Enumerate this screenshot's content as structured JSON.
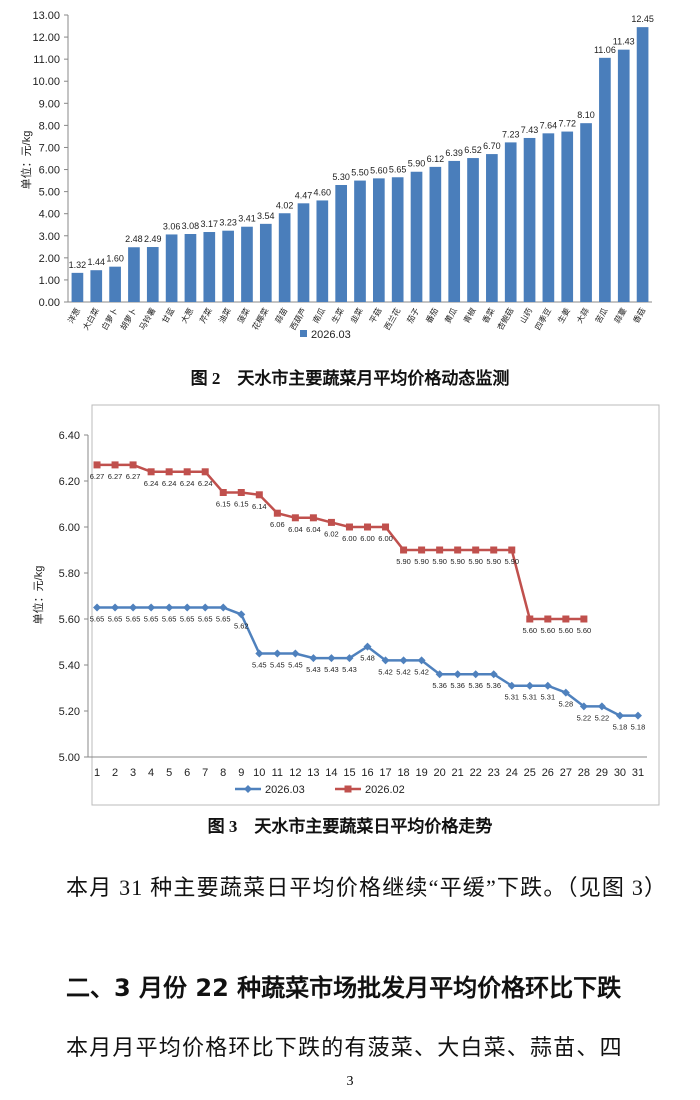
{
  "chart_data": [
    {
      "type": "bar",
      "ylabel": "单位：元/kg",
      "categories": [
        "洋葱",
        "大白菜",
        "白萝卜",
        "胡萝卜",
        "马铃薯",
        "甘蓝",
        "大葱",
        "芹菜",
        "油菜",
        "菠菜",
        "花椰菜",
        "蒜苗",
        "西葫芦",
        "南瓜",
        "生菜",
        "韭菜",
        "平菇",
        "西兰花",
        "茄子",
        "番茄",
        "黄瓜",
        "青椒",
        "香菜",
        "杏鲍菇",
        "山药",
        "四季豆",
        "生姜",
        "大蒜",
        "苦瓜",
        "蒜薹",
        "香菇"
      ],
      "series": [
        {
          "name": "2026.03",
          "color": "#4a7ebb",
          "values": [
            1.32,
            1.44,
            1.6,
            2.48,
            2.49,
            3.06,
            3.08,
            3.17,
            3.23,
            3.41,
            3.54,
            4.02,
            4.47,
            4.6,
            5.3,
            5.5,
            5.6,
            5.65,
            5.9,
            6.12,
            6.39,
            6.52,
            6.7,
            7.23,
            7.43,
            7.64,
            7.72,
            8.1,
            11.06,
            11.43,
            12.45
          ],
          "value_labels": [
            "1.32",
            "1.44",
            "1.60",
            "2.48",
            "2.49",
            "3.06",
            "3.08",
            "3.17",
            "3.23",
            "3.41",
            "3.54",
            "4.02",
            "4.47",
            "4.60",
            "5.30",
            "5.50",
            "5.60",
            "5.65",
            "5.90",
            "6.12",
            "6.39",
            "6.52",
            "6.70",
            "7.23",
            "7.43",
            "7.64",
            "7.72",
            "8.10",
            "11.06",
            "11.43",
            "12.45"
          ]
        }
      ],
      "ylim": [
        0,
        13
      ],
      "yticks": [
        {
          "value": 0,
          "label": "0.00"
        },
        {
          "value": 1,
          "label": "1.00"
        },
        {
          "value": 2,
          "label": "2.00"
        },
        {
          "value": 3,
          "label": "3.00"
        },
        {
          "value": 4,
          "label": "4.00"
        },
        {
          "value": 5,
          "label": "5.00"
        },
        {
          "value": 6,
          "label": "6.00"
        },
        {
          "value": 7,
          "label": "7.00"
        },
        {
          "value": 8,
          "label": "8.00"
        },
        {
          "value": 9,
          "label": "9.00"
        },
        {
          "value": 10,
          "label": "10.00"
        },
        {
          "value": 11,
          "label": "11.00"
        },
        {
          "value": 12,
          "label": "12.00"
        },
        {
          "value": 13,
          "label": "13.00"
        }
      ],
      "grid": false,
      "legend": "bottom",
      "caption": "图 2　天水市主要蔬菜月平均价格动态监测"
    },
    {
      "type": "line",
      "ylabel": "单位：元/kg",
      "categories": [
        "1",
        "2",
        "3",
        "4",
        "5",
        "6",
        "7",
        "8",
        "9",
        "10",
        "11",
        "12",
        "13",
        "14",
        "15",
        "16",
        "17",
        "18",
        "19",
        "20",
        "21",
        "22",
        "23",
        "24",
        "25",
        "26",
        "27",
        "28",
        "29",
        "30",
        "31"
      ],
      "series": [
        {
          "name": "2026.03",
          "color": "#4f81bd",
          "marker": "diamond",
          "values": [
            5.65,
            5.65,
            5.65,
            5.65,
            5.65,
            5.65,
            5.65,
            5.65,
            5.62,
            5.45,
            5.45,
            5.45,
            5.43,
            5.43,
            5.43,
            5.48,
            5.42,
            5.42,
            5.42,
            5.36,
            5.36,
            5.36,
            5.36,
            5.31,
            5.31,
            5.31,
            5.28,
            5.22,
            5.22,
            5.18,
            5.18
          ]
        },
        {
          "name": "2026.02",
          "color": "#c0504d",
          "marker": "square",
          "values": [
            6.27,
            6.27,
            6.27,
            6.24,
            6.24,
            6.24,
            6.24,
            6.15,
            6.15,
            6.14,
            6.06,
            6.04,
            6.04,
            6.02,
            6.0,
            6.0,
            6.0,
            5.9,
            5.9,
            5.9,
            5.9,
            5.9,
            5.9,
            5.9,
            5.6,
            5.6,
            5.6,
            5.6,
            null,
            null,
            null
          ],
          "value_labels": [
            "6.27",
            "6.27",
            "6.27",
            "6.24",
            "6.24",
            "6.24",
            "6.24",
            "6.15",
            "6.15",
            "6.14",
            "6.06",
            "6.04",
            "6.04",
            "6.02",
            "6.00",
            "6.00",
            "6.00",
            "5.90",
            "5.90",
            "5.90",
            "5.90",
            "5.90",
            "5.90",
            "5.90",
            "5.60",
            "5.60",
            "5.60",
            "5.60",
            null,
            null,
            null
          ]
        }
      ],
      "ylim": [
        5.0,
        6.4
      ],
      "yticks": [
        {
          "value": 5.0,
          "label": "5.00"
        },
        {
          "value": 5.2,
          "label": "5.20"
        },
        {
          "value": 5.4,
          "label": "5.40"
        },
        {
          "value": 5.6,
          "label": "5.60"
        },
        {
          "value": 5.8,
          "label": "5.80"
        },
        {
          "value": 6.0,
          "label": "6.00"
        },
        {
          "value": 6.2,
          "label": "6.20"
        },
        {
          "value": 6.4,
          "label": "6.40"
        }
      ],
      "grid": false,
      "legend": "bottom",
      "caption": "图 3　天水市主要蔬菜日平均价格走势"
    }
  ],
  "paragraphs": [
    "本月 31 种主要蔬菜日平均价格继续“平缓”下跌。（见图 3）"
  ],
  "heading": "二、3 月份 22 种蔬菜市场批发月平均价格环比下跌",
  "last_paragraph": "本月月平均价格环比下跌的有菠菜、大白菜、蒜苗、四",
  "page_number": "3"
}
